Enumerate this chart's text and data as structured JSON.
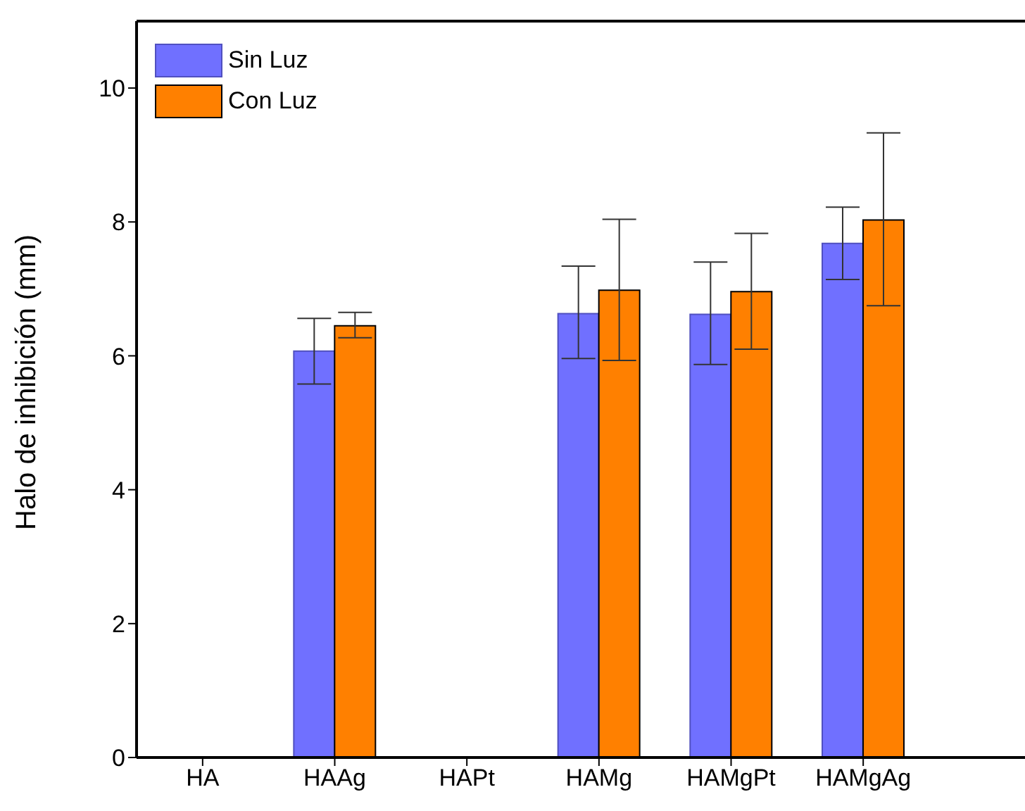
{
  "chart_data": {
    "type": "bar",
    "ylabel": "Halo de inhibición (mm)",
    "categories": [
      "HA",
      "HAAg",
      "HAPt",
      "HAMg",
      "HAMgPt",
      "HAMgAg"
    ],
    "series": [
      {
        "name": "Sin Luz",
        "color": "#7070ff",
        "values": [
          null,
          6.07,
          null,
          6.63,
          6.62,
          7.68
        ],
        "errors": [
          null,
          [
            5.58,
            6.56
          ],
          null,
          [
            5.96,
            7.34
          ],
          [
            5.87,
            7.4
          ],
          [
            7.14,
            8.22
          ]
        ]
      },
      {
        "name": "Con Luz",
        "color": "#ff8000",
        "values": [
          null,
          6.45,
          null,
          6.98,
          6.96,
          8.03
        ],
        "errors": [
          null,
          [
            6.27,
            6.65
          ],
          null,
          [
            5.93,
            8.04
          ],
          [
            6.1,
            7.83
          ],
          [
            6.75,
            9.33
          ]
        ]
      }
    ],
    "ylim": [
      0,
      11
    ],
    "yticks": [
      0,
      2,
      4,
      6,
      8,
      10
    ],
    "legend": "top left"
  }
}
